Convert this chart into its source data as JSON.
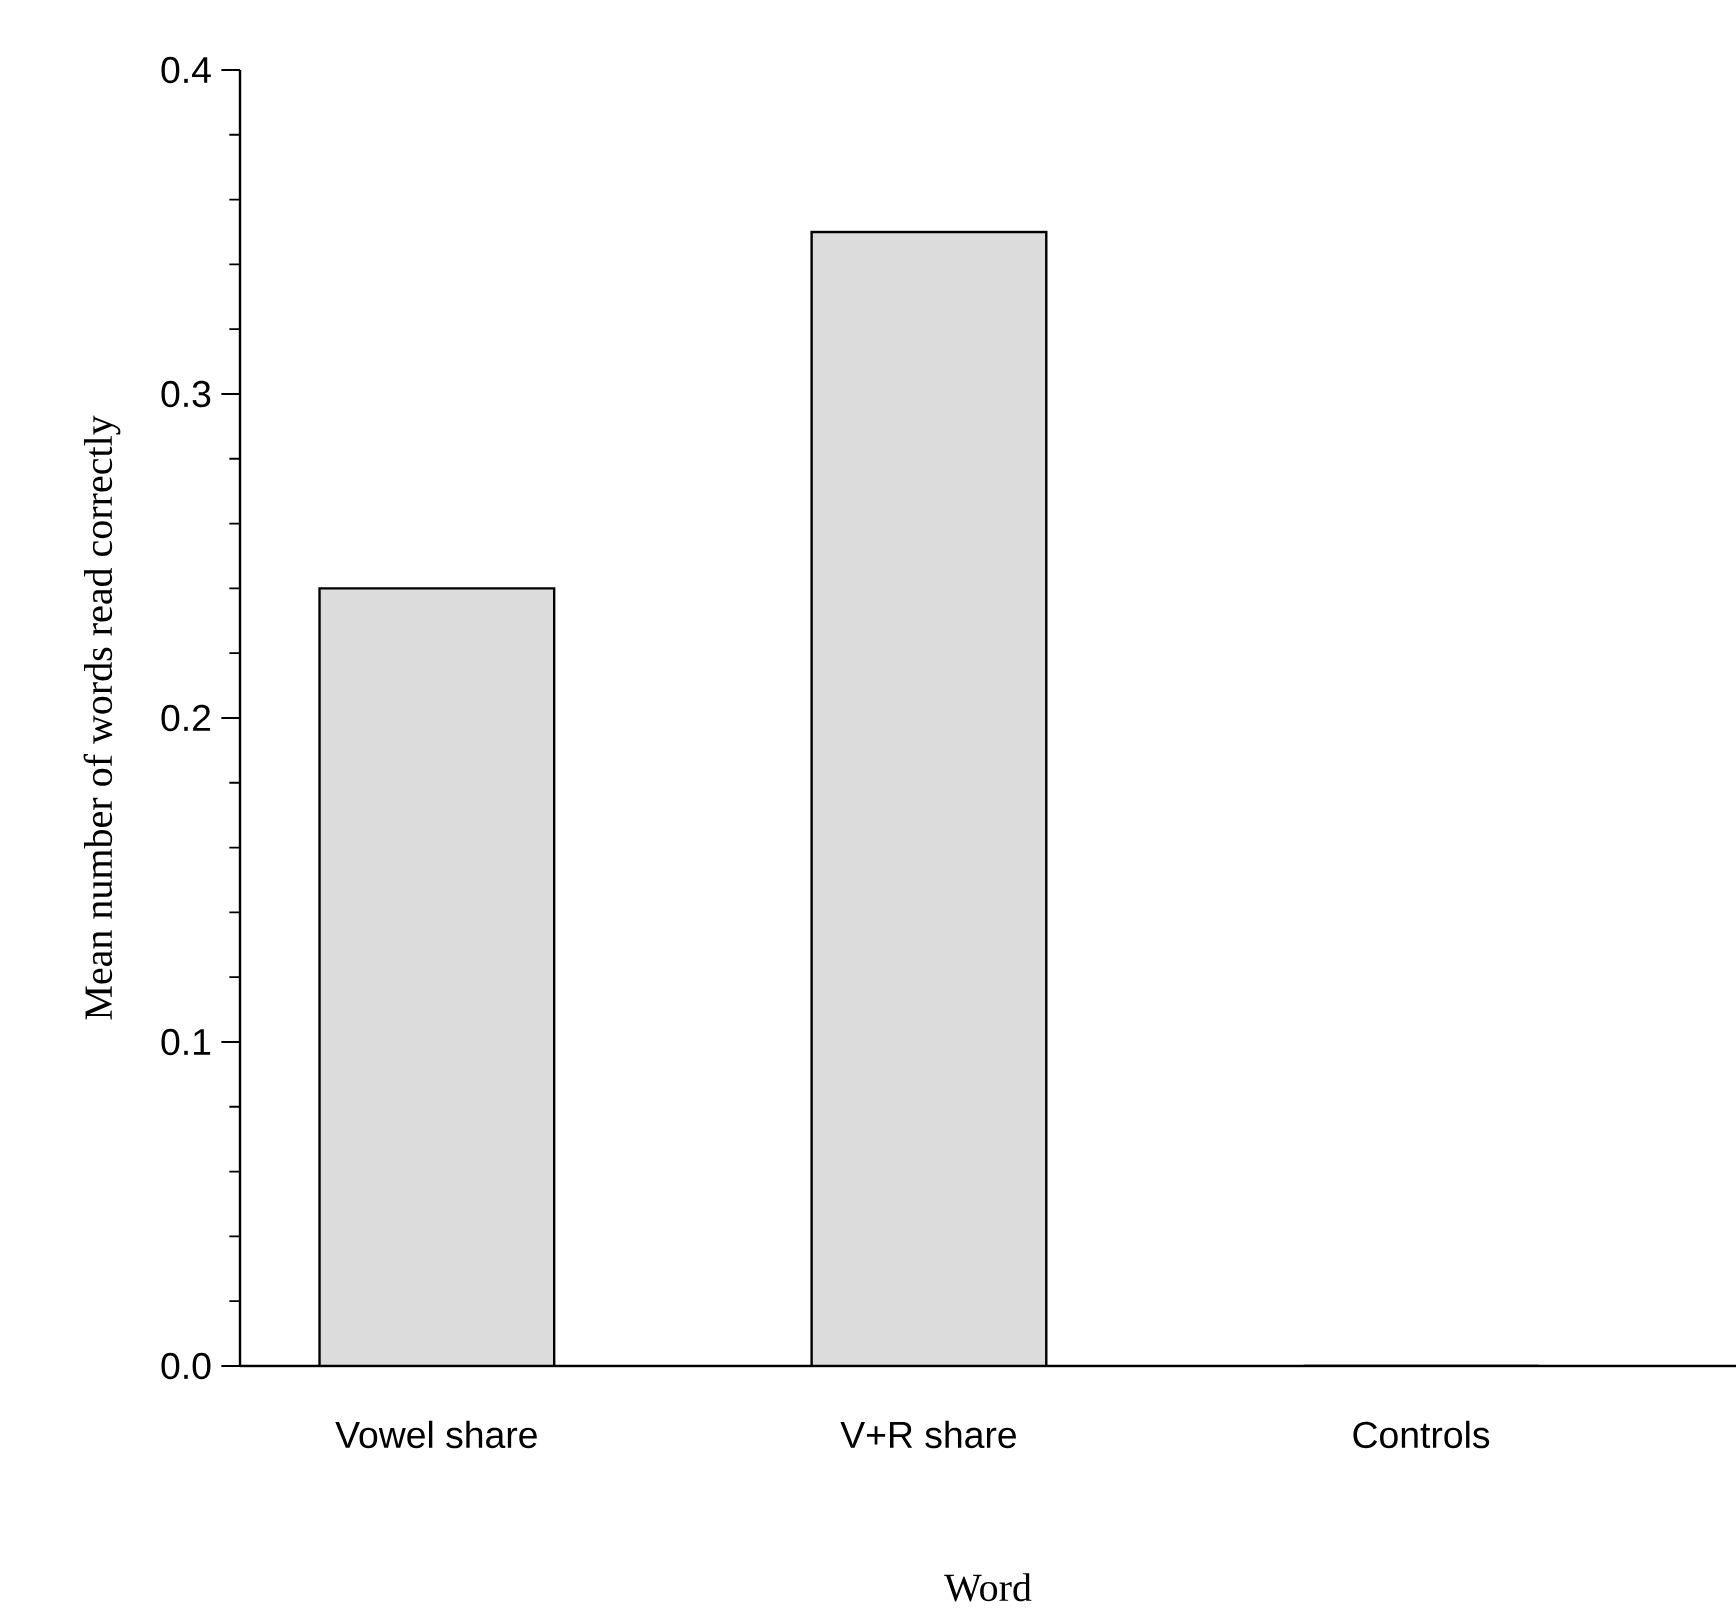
{
  "chart_data": {
    "type": "bar",
    "xlabel": "Word",
    "ylabel": "Mean number of words read correctly",
    "categories": [
      "Vowel share",
      "V+R share",
      "Controls"
    ],
    "values": [
      0.24,
      0.35,
      0.0
    ],
    "color": "#dcdcdc",
    "ylim": [
      0,
      0.4
    ],
    "yticks": [
      {
        "value": 0,
        "label": "0.0"
      },
      0.1,
      0.2,
      0.3,
      0.4
    ]
  }
}
